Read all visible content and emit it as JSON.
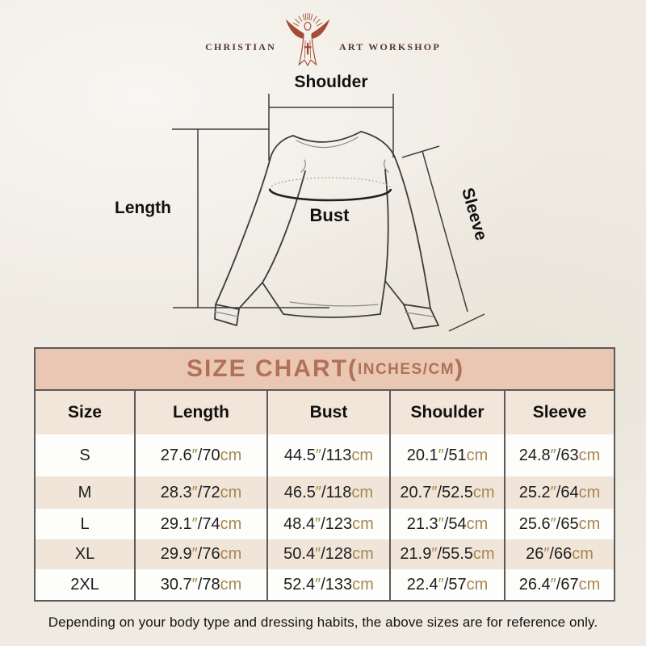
{
  "background": {
    "color": "#efebe2"
  },
  "logo": {
    "left_text": "CHRISTIAN",
    "right_text": "ART WORKSHOP",
    "icon": "jesus-open-arms-rays-icon",
    "text_color": "#54372b",
    "icon_color": "#a34d36"
  },
  "diagram": {
    "shoulder_label": "Shoulder",
    "length_label": "Length",
    "bust_label": "Bust",
    "sleeve_label": "Sleeve",
    "line_color": "#3d3d3d"
  },
  "size_chart": {
    "title_main": "SIZE CHART(",
    "title_unit": "INCHES/CM",
    "title_close": ")",
    "columns": [
      "Size",
      "Length",
      "Bust",
      "Shoulder",
      "Sleeve"
    ],
    "unit_inch_mark": "″",
    "unit_cm": "cm",
    "rows": [
      {
        "size": "S",
        "length": [
          "27.6",
          "70"
        ],
        "bust": [
          "44.5",
          "113"
        ],
        "shoulder": [
          "20.1",
          "51"
        ],
        "sleeve": [
          "24.8",
          "63"
        ]
      },
      {
        "size": "M",
        "length": [
          "28.3",
          "72"
        ],
        "bust": [
          "46.5",
          "118"
        ],
        "shoulder": [
          "20.7",
          "52.5"
        ],
        "sleeve": [
          "25.2",
          "64"
        ]
      },
      {
        "size": "L",
        "length": [
          "29.1",
          "74"
        ],
        "bust": [
          "48.4",
          "123"
        ],
        "shoulder": [
          "21.3",
          "54"
        ],
        "sleeve": [
          "25.6",
          "65"
        ]
      },
      {
        "size": "XL",
        "length": [
          "29.9",
          "76"
        ],
        "bust": [
          "50.4",
          "128"
        ],
        "shoulder": [
          "21.9",
          "55.5"
        ],
        "sleeve": [
          "26",
          "66"
        ]
      },
      {
        "size": "2XL",
        "length": [
          "30.7",
          "78"
        ],
        "bust": [
          "52.4",
          "133"
        ],
        "shoulder": [
          "22.4",
          "57"
        ],
        "sleeve": [
          "26.4",
          "67"
        ]
      }
    ],
    "colors": {
      "title_bg": "#e9c7b2",
      "title_text": "#b2705a",
      "band_bg": "#f0e5d8",
      "header_bg": "#f1e6d9",
      "white_bg": "#fdfdfb",
      "border": "#5a5a5a",
      "number_text": "#1c1c1c",
      "unit_text": "#a6874f"
    }
  },
  "footer": {
    "note": "Depending on your body type and dressing habits, the above sizes are for reference only."
  },
  "chart_data": {
    "type": "table",
    "title": "SIZE CHART(INCHES/CM)",
    "columns": [
      "Size",
      "Length",
      "Bust",
      "Shoulder",
      "Sleeve"
    ],
    "rows": [
      [
        "S",
        "27.6″/70cm",
        "44.5″/113cm",
        "20.1″/51cm",
        "24.8″/63cm"
      ],
      [
        "M",
        "28.3″/72cm",
        "46.5″/118cm",
        "20.7″/52.5cm",
        "25.2″/64cm"
      ],
      [
        "L",
        "29.1″/74cm",
        "48.4″/123cm",
        "21.3″/54cm",
        "25.6″/65cm"
      ],
      [
        "XL",
        "29.9″/76cm",
        "50.4″/128cm",
        "21.9″/55.5cm",
        "26″/66cm"
      ],
      [
        "2XL",
        "30.7″/78cm",
        "52.4″/133cm",
        "22.4″/57cm",
        "26.4″/67cm"
      ]
    ]
  }
}
